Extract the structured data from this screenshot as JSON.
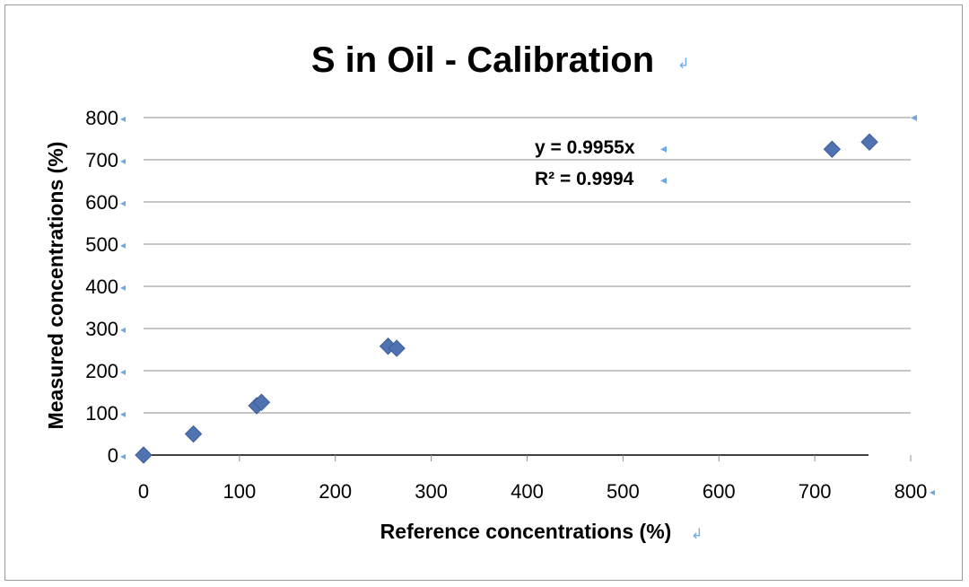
{
  "chart_data": {
    "type": "scatter",
    "title": "S in Oil - Calibration",
    "xlabel": "Reference concentrations (%)",
    "ylabel": "Measured concentrations (%)",
    "xlim": [
      0,
      800
    ],
    "ylim": [
      0,
      800
    ],
    "x_ticks": [
      "0",
      "100",
      "200",
      "300",
      "400",
      "500",
      "600",
      "700",
      "800"
    ],
    "y_ticks": [
      "0",
      "100",
      "200",
      "300",
      "400",
      "500",
      "600",
      "700",
      "800"
    ],
    "grid": true,
    "legend": "none",
    "marker_color": "#4f72b0",
    "series": [
      {
        "x": [
          0,
          52,
          118,
          123,
          255,
          264,
          718,
          757
        ],
        "y": [
          0,
          50,
          117,
          125,
          258,
          253,
          725,
          742
        ]
      }
    ],
    "annotations": [
      "y = 0.9955x",
      "R² = 0.9994"
    ]
  }
}
